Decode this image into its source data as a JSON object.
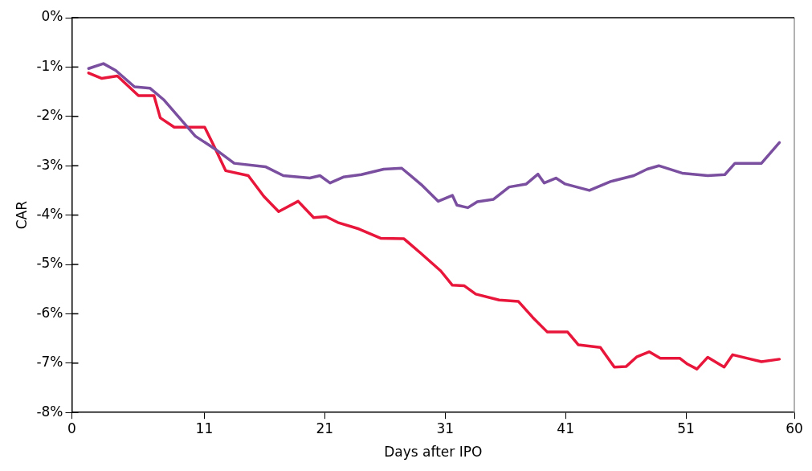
{
  "chart_data": {
    "type": "line",
    "xlabel": "Days after IPO",
    "ylabel": "CAR",
    "xlim": [
      0,
      60
    ],
    "xticks": [
      0,
      11,
      21,
      31,
      41,
      51,
      60
    ],
    "ylim": [
      -8,
      0
    ],
    "yticks": [
      {
        "value": 0,
        "label": "0%"
      },
      {
        "value": -1,
        "label": "-1%"
      },
      {
        "value": -2,
        "label": "-2%"
      },
      {
        "value": -3,
        "label": "-3%"
      },
      {
        "value": -4,
        "label": "-4%"
      },
      {
        "value": -5,
        "label": "-5%"
      },
      {
        "value": -6,
        "label": "-6%"
      },
      {
        "value": -7,
        "label": "-7%"
      },
      {
        "value": -8,
        "label": "-8%"
      }
    ],
    "grid": false,
    "legend": false,
    "marker": "none",
    "line_style": "solid",
    "series": [
      {
        "color": "#7b4fa0",
        "x": [
          1.39,
          2.62,
          3.65,
          5.2,
          6.5,
          7.66,
          10.25,
          12.0,
          13.48,
          16.07,
          17.56,
          19.76,
          20.6,
          21.44,
          22.54,
          24.03,
          25.9,
          27.39,
          29.01,
          30.43,
          31.6,
          31.98,
          32.89,
          33.67,
          35.02,
          36.32,
          37.74,
          38.71,
          39.23,
          40.2,
          40.97,
          42.98,
          44.73,
          46.67,
          47.77,
          48.74,
          50.68,
          52.81,
          54.23,
          55.07,
          57.27,
          58.76
        ],
        "values": [
          -1.03,
          -0.93,
          -1.07,
          -1.4,
          -1.43,
          -1.67,
          -2.4,
          -2.68,
          -2.95,
          -3.02,
          -3.2,
          -3.25,
          -3.2,
          -3.35,
          -3.23,
          -3.18,
          -3.07,
          -3.05,
          -3.38,
          -3.72,
          -3.6,
          -3.8,
          -3.85,
          -3.73,
          -3.68,
          -3.43,
          -3.37,
          -3.17,
          -3.35,
          -3.25,
          -3.37,
          -3.5,
          -3.32,
          -3.2,
          -3.07,
          -3.0,
          -3.15,
          -3.2,
          -3.18,
          -2.95,
          -2.95,
          -2.53
        ]
      },
      {
        "color": "#e8163a",
        "x": [
          1.39,
          2.49,
          3.78,
          5.53,
          6.82,
          7.34,
          8.5,
          11.03,
          11.74,
          12.77,
          14.65,
          15.94,
          17.17,
          18.79,
          20.08,
          21.12,
          22.09,
          23.83,
          25.64,
          27.58,
          29.01,
          30.63,
          31.6,
          32.57,
          33.54,
          35.48,
          37.09,
          38.26,
          39.49,
          41.17,
          42.07,
          43.89,
          45.05,
          46.02,
          46.93,
          47.96,
          48.87,
          50.48,
          51.13,
          51.91,
          52.81,
          54.17,
          54.88,
          56.05,
          57.27,
          58.76
        ],
        "values": [
          -1.12,
          -1.23,
          -1.18,
          -1.58,
          -1.58,
          -2.03,
          -2.22,
          -2.22,
          -2.57,
          -3.1,
          -3.2,
          -3.62,
          -3.93,
          -3.72,
          -4.05,
          -4.03,
          -4.15,
          -4.28,
          -4.47,
          -4.48,
          -4.78,
          -5.13,
          -5.42,
          -5.43,
          -5.6,
          -5.72,
          -5.75,
          -6.07,
          -6.37,
          -6.37,
          -6.63,
          -6.68,
          -7.08,
          -7.07,
          -6.87,
          -6.77,
          -6.9,
          -6.9,
          -7.02,
          -7.12,
          -6.88,
          -7.08,
          -6.83,
          -6.9,
          -6.97,
          -6.92
        ]
      }
    ]
  }
}
